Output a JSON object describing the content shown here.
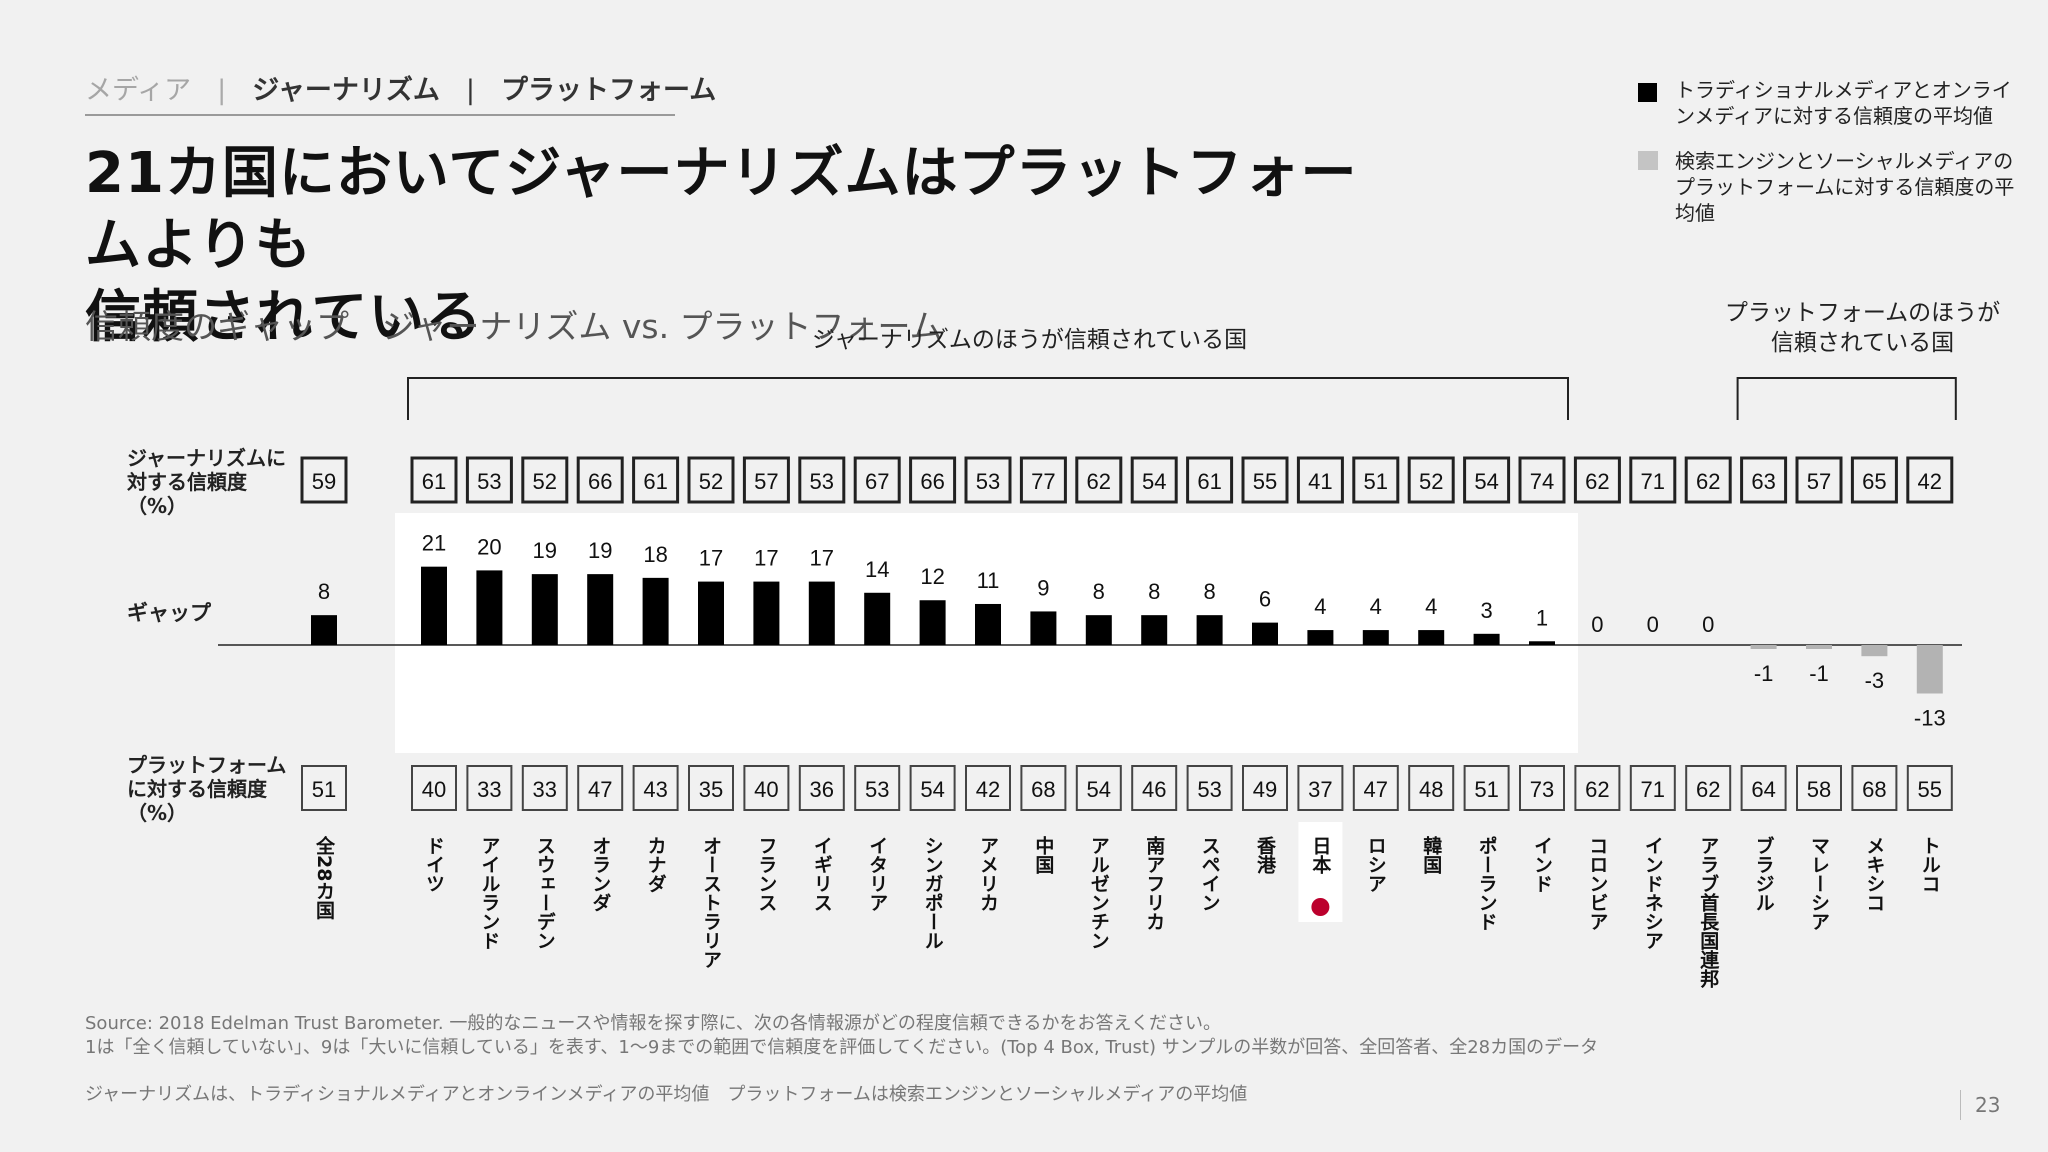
{
  "breadcrumb": {
    "media": "メディア",
    "sep1": "|",
    "journalism": "ジャーナリズム",
    "sep2": "|",
    "platform": "プラットフォーム"
  },
  "title_line1": "21カ国においてジャーナリズムはプラットフォームよりも",
  "title_line2": "信頼されている",
  "subtitle": "信頼度のギャップ　ジャーナリズム",
  "subtitle_vs": " vs. プラットフォーム",
  "legend": {
    "item1_color": "#000000",
    "item1": "トラディショナルメディアとオンラインメディアに対する信頼度の平均値",
    "item2_color": "#c4c4c4",
    "item2": "検索エンジンとソーシャルメディアのプラットフォームに対する信頼度の平均値"
  },
  "bracket1_label": "ジャーナリズムのほうが信頼されている国",
  "bracket2_label": "プラットフォームのほうが信頼されている国",
  "row_labels": {
    "journalism": "ジャーナリズムに対する信頼度（%）",
    "gap": "ギャップ",
    "platform": "プラットフォームに対する信頼度（%）"
  },
  "colors": {
    "positive": "#000000",
    "negative": "#b3b3b3",
    "highlight_panel": "#ffffff",
    "flag_red": "#bc002d"
  },
  "chart_data": {
    "type": "bar",
    "categories": [
      "全28カ国",
      "ドイツ",
      "アイルランド",
      "スウェーデン",
      "オランダ",
      "カナダ",
      "オーストラリア",
      "フランス",
      "イギリス",
      "イタリア",
      "シンガポール",
      "アメリカ",
      "中国",
      "アルゼンチン",
      "南アフリカ",
      "スペイン",
      "香港",
      "日本",
      "ロシア",
      "韓国",
      "ポーランド",
      "インド",
      "コロンビア",
      "インドネシア",
      "アラブ首長国連邦",
      "ブラジル",
      "マレーシア",
      "メキシコ",
      "トルコ"
    ],
    "journalism": [
      59,
      61,
      53,
      52,
      66,
      61,
      52,
      57,
      53,
      67,
      66,
      53,
      77,
      62,
      54,
      61,
      55,
      41,
      51,
      52,
      54,
      74,
      62,
      71,
      62,
      63,
      57,
      65,
      42
    ],
    "gap": [
      8,
      21,
      20,
      19,
      19,
      18,
      17,
      17,
      17,
      14,
      12,
      11,
      9,
      8,
      8,
      8,
      6,
      4,
      4,
      4,
      3,
      1,
      0,
      0,
      0,
      -1,
      -1,
      -3,
      -13
    ],
    "platform": [
      51,
      40,
      33,
      33,
      47,
      43,
      35,
      40,
      36,
      53,
      54,
      42,
      68,
      54,
      46,
      53,
      49,
      37,
      47,
      48,
      51,
      73,
      62,
      71,
      62,
      64,
      58,
      68,
      55
    ],
    "highlight": "日本"
  },
  "source": "Source: 2018 Edelman Trust Barometer. 一般的なニュースや情報を探す際に、次の各情報源がどの程度信頼できるかをお答えください。",
  "source_line2": "1は「全く信頼していない」、9は「大いに信頼している」を表す、1〜9までの範囲で信頼度を評価してください。(Top 4 Box, Trust) サンプルの半数が回答、全回答者、全28カ国のデータ",
  "note": "ジャーナリズムは、トラディショナルメディアとオンラインメディアの平均値　プラットフォームは検索エンジンとソーシャルメディアの平均値",
  "page_number": "23"
}
